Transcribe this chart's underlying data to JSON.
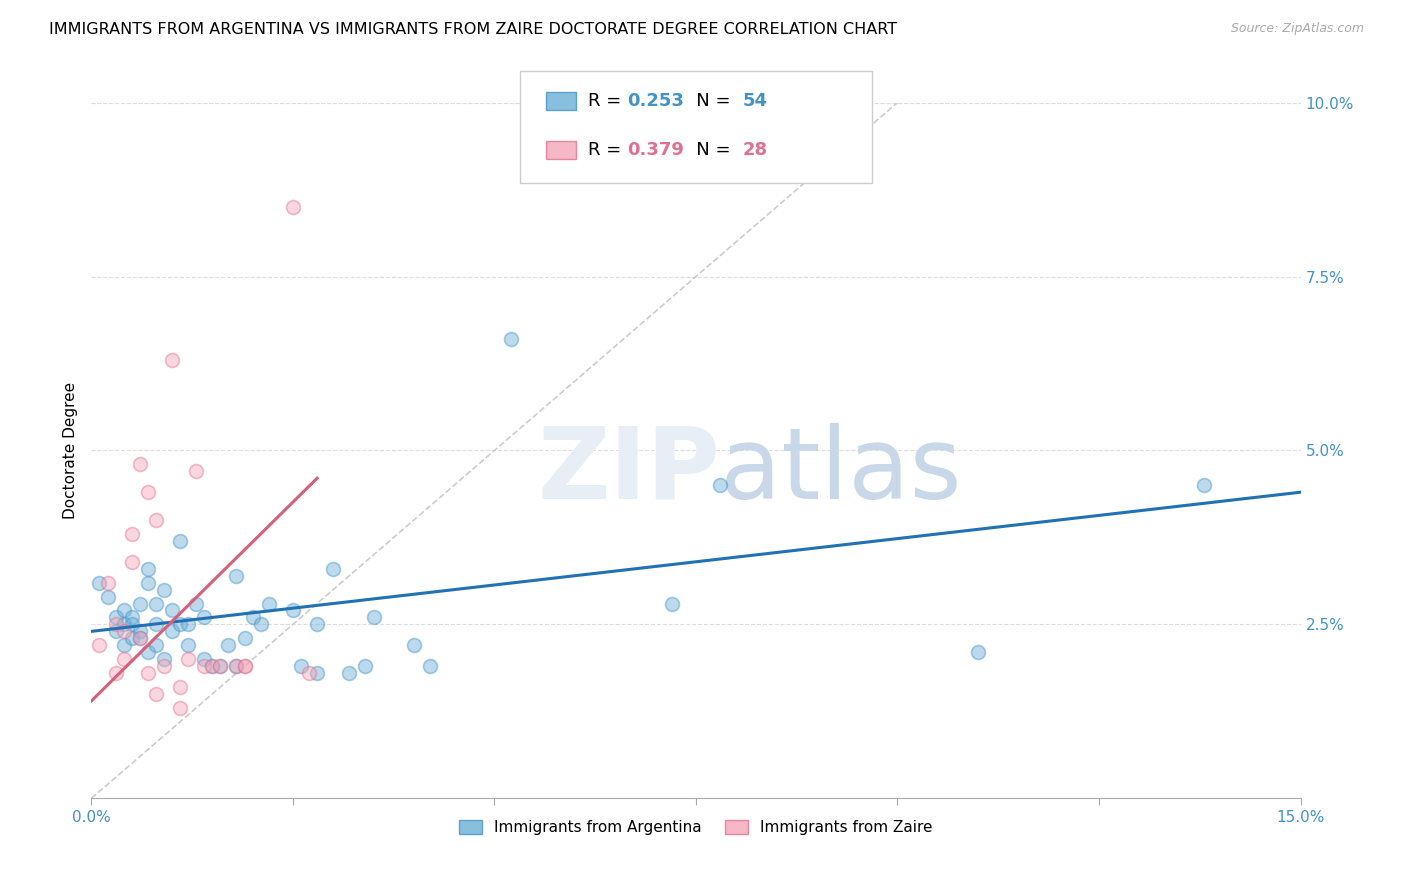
{
  "title": "IMMIGRANTS FROM ARGENTINA VS IMMIGRANTS FROM ZAIRE DOCTORATE DEGREE CORRELATION CHART",
  "source": "Source: ZipAtlas.com",
  "ylabel": "Doctorate Degree",
  "xlim": [
    0.0,
    0.15
  ],
  "ylim": [
    0.0,
    0.1
  ],
  "xticks": [
    0.0,
    0.025,
    0.05,
    0.075,
    0.1,
    0.125,
    0.15
  ],
  "xticklabels": [
    "0.0%",
    "",
    "",
    "",
    "",
    "",
    "15.0%"
  ],
  "yticks_right": [
    0.0,
    0.025,
    0.05,
    0.075,
    0.1
  ],
  "yticklabels_right": [
    "",
    "2.5%",
    "5.0%",
    "7.5%",
    "10.0%"
  ],
  "legend_entries": [
    {
      "label": "Immigrants from Argentina",
      "R": "0.253",
      "N": "54",
      "color": "#6baed6",
      "edge": "#4292c6",
      "text_color": "#4292c6"
    },
    {
      "label": "Immigrants from Zaire",
      "R": "0.379",
      "N": "28",
      "color": "#f4a5b8",
      "edge": "#e07090",
      "text_color": "#e07090"
    }
  ],
  "argentina_scatter": [
    [
      0.001,
      0.031
    ],
    [
      0.002,
      0.029
    ],
    [
      0.003,
      0.026
    ],
    [
      0.003,
      0.024
    ],
    [
      0.004,
      0.025
    ],
    [
      0.004,
      0.027
    ],
    [
      0.004,
      0.022
    ],
    [
      0.005,
      0.026
    ],
    [
      0.005,
      0.023
    ],
    [
      0.005,
      0.025
    ],
    [
      0.006,
      0.024
    ],
    [
      0.006,
      0.023
    ],
    [
      0.006,
      0.028
    ],
    [
      0.007,
      0.031
    ],
    [
      0.007,
      0.033
    ],
    [
      0.007,
      0.021
    ],
    [
      0.008,
      0.025
    ],
    [
      0.008,
      0.022
    ],
    [
      0.008,
      0.028
    ],
    [
      0.009,
      0.03
    ],
    [
      0.009,
      0.02
    ],
    [
      0.01,
      0.027
    ],
    [
      0.01,
      0.024
    ],
    [
      0.011,
      0.025
    ],
    [
      0.011,
      0.037
    ],
    [
      0.012,
      0.025
    ],
    [
      0.012,
      0.022
    ],
    [
      0.013,
      0.028
    ],
    [
      0.014,
      0.026
    ],
    [
      0.014,
      0.02
    ],
    [
      0.015,
      0.019
    ],
    [
      0.016,
      0.019
    ],
    [
      0.017,
      0.022
    ],
    [
      0.018,
      0.032
    ],
    [
      0.018,
      0.019
    ],
    [
      0.019,
      0.023
    ],
    [
      0.02,
      0.026
    ],
    [
      0.021,
      0.025
    ],
    [
      0.022,
      0.028
    ],
    [
      0.025,
      0.027
    ],
    [
      0.026,
      0.019
    ],
    [
      0.028,
      0.025
    ],
    [
      0.028,
      0.018
    ],
    [
      0.03,
      0.033
    ],
    [
      0.032,
      0.018
    ],
    [
      0.034,
      0.019
    ],
    [
      0.035,
      0.026
    ],
    [
      0.04,
      0.022
    ],
    [
      0.042,
      0.019
    ],
    [
      0.052,
      0.066
    ],
    [
      0.072,
      0.028
    ],
    [
      0.078,
      0.045
    ],
    [
      0.11,
      0.021
    ],
    [
      0.138,
      0.045
    ]
  ],
  "zaire_scatter": [
    [
      0.001,
      0.022
    ],
    [
      0.002,
      0.031
    ],
    [
      0.003,
      0.025
    ],
    [
      0.003,
      0.018
    ],
    [
      0.004,
      0.024
    ],
    [
      0.004,
      0.02
    ],
    [
      0.005,
      0.038
    ],
    [
      0.005,
      0.034
    ],
    [
      0.006,
      0.048
    ],
    [
      0.006,
      0.023
    ],
    [
      0.007,
      0.044
    ],
    [
      0.007,
      0.018
    ],
    [
      0.008,
      0.04
    ],
    [
      0.008,
      0.015
    ],
    [
      0.009,
      0.019
    ],
    [
      0.01,
      0.063
    ],
    [
      0.011,
      0.016
    ],
    [
      0.011,
      0.013
    ],
    [
      0.012,
      0.02
    ],
    [
      0.013,
      0.047
    ],
    [
      0.014,
      0.019
    ],
    [
      0.015,
      0.019
    ],
    [
      0.016,
      0.019
    ],
    [
      0.018,
      0.019
    ],
    [
      0.019,
      0.019
    ],
    [
      0.019,
      0.019
    ],
    [
      0.025,
      0.085
    ],
    [
      0.027,
      0.018
    ]
  ],
  "argentina_line_x": [
    0.0,
    0.15
  ],
  "argentina_line_y": [
    0.024,
    0.044
  ],
  "zaire_line_x": [
    0.0,
    0.028
  ],
  "zaire_line_y": [
    0.014,
    0.046
  ],
  "diagonal_line_x": [
    0.0,
    0.1
  ],
  "diagonal_line_y": [
    0.0,
    0.1
  ],
  "scatter_size": 100,
  "scatter_alpha": 0.45,
  "line_blue": "#2171b5",
  "line_pink": "#d6607a",
  "title_fontsize": 11.5,
  "axis_label_fontsize": 11,
  "tick_fontsize": 11,
  "background_color": "#ffffff",
  "grid_color": "#dddddd",
  "watermark_color": "#e8eef5",
  "watermark_zip": "ZIP",
  "watermark_atlas": "atlas"
}
